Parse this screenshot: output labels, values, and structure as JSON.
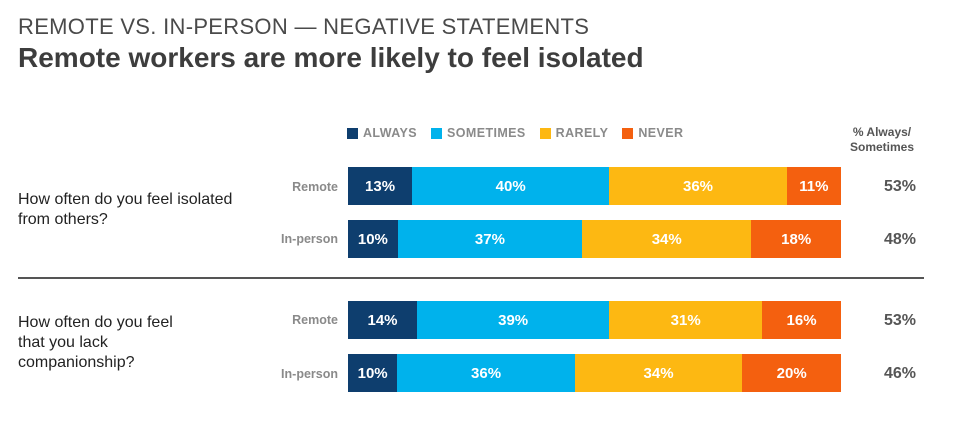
{
  "header": {
    "kicker": "REMOTE VS. IN-PERSON — NEGATIVE STATEMENTS",
    "title": "Remote workers are more likely to feel isolated"
  },
  "colors": {
    "always": "#0e3e6e",
    "sometimes": "#00b2ec",
    "rarely": "#fdb812",
    "never": "#f4600f"
  },
  "chart_data": {
    "type": "bar",
    "orientation": "horizontal",
    "stacked": true,
    "legend": [
      "ALWAYS",
      "SOMETIMES",
      "RARELY",
      "NEVER"
    ],
    "summary_header": "% Always/ Sometimes",
    "groups": [
      {
        "question": "How often do you feel isolated from others?",
        "rows": [
          {
            "label": "Remote",
            "values": [
              13,
              40,
              36,
              11
            ],
            "labels": [
              "13%",
              "40%",
              "36%",
              "11%"
            ],
            "total": "53%"
          },
          {
            "label": "In-person",
            "values": [
              10,
              37,
              34,
              18
            ],
            "labels": [
              "10%",
              "37%",
              "34%",
              "18%"
            ],
            "total": "48%"
          }
        ]
      },
      {
        "question": "How often do you feel that you lack companionship?",
        "rows": [
          {
            "label": "Remote",
            "values": [
              14,
              39,
              31,
              16
            ],
            "labels": [
              "14%",
              "39%",
              "31%",
              "16%"
            ],
            "total": "53%"
          },
          {
            "label": "In-person",
            "values": [
              10,
              36,
              34,
              20
            ],
            "labels": [
              "10%",
              "36%",
              "34%",
              "20%"
            ],
            "total": "46%"
          }
        ]
      }
    ]
  }
}
